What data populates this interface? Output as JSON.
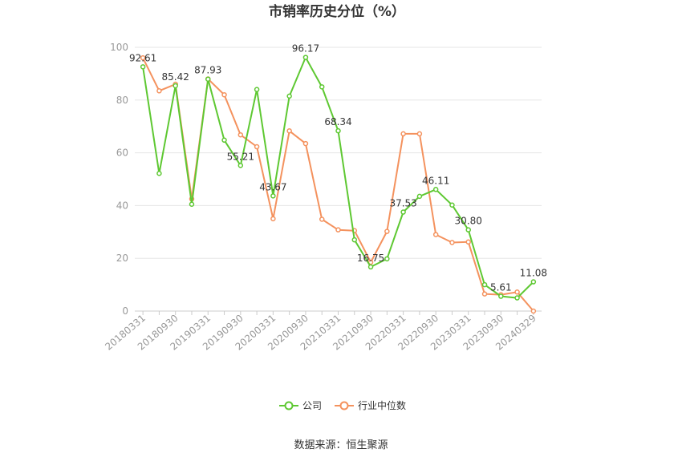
{
  "chart_data": {
    "type": "line",
    "title": "市销率历史分位（%）",
    "xlabel": "",
    "ylabel": "",
    "ylim": [
      0,
      100
    ],
    "yticks": [
      0,
      20,
      40,
      60,
      80,
      100
    ],
    "grid": true,
    "legend_position": "bottom",
    "x": [
      "20180331",
      "20180630",
      "20180930",
      "20181231",
      "20190331",
      "20190630",
      "20190930",
      "20191231",
      "20200331",
      "20200630",
      "20200930",
      "20201231",
      "20210331",
      "20210630",
      "20210930",
      "20211231",
      "20220331",
      "20220630",
      "20220930",
      "20221231",
      "20230331",
      "20230630",
      "20230930",
      "20231231",
      "20240329"
    ],
    "xticks": [
      "20180331",
      "20180930",
      "20190331",
      "20190930",
      "20200331",
      "20200930",
      "20210331",
      "20210930",
      "20220331",
      "20220930",
      "20230331",
      "20230930",
      "20240329"
    ],
    "series": [
      {
        "name": "公司",
        "color": "#5ec832",
        "values": [
          92.61,
          52.2,
          85.42,
          40.5,
          87.93,
          64.8,
          55.21,
          84.0,
          43.67,
          81.5,
          96.17,
          85.0,
          68.34,
          27.0,
          16.75,
          19.8,
          37.53,
          43.5,
          46.11,
          40.2,
          30.8,
          10.0,
          5.61,
          5.0,
          11.08
        ],
        "labels": {
          "0": "92.61",
          "2": "85.42",
          "4": "87.93",
          "6": "55.21",
          "8": "43.67",
          "10": "96.17",
          "12": "68.34",
          "14": "16.75",
          "16": "37.53",
          "18": "46.11",
          "20": "30.80",
          "22": "5.61",
          "24": "11.08"
        }
      },
      {
        "name": "行业中位数",
        "color": "#f4925e",
        "values": [
          96.0,
          83.5,
          86.0,
          42.5,
          88.0,
          82.0,
          66.8,
          62.3,
          35.0,
          68.3,
          63.5,
          34.8,
          30.8,
          30.5,
          18.5,
          30.2,
          67.2,
          67.2,
          29.0,
          26.0,
          26.2,
          6.5,
          6.2,
          7.2,
          0.0
        ]
      }
    ],
    "source": "数据来源：恒生聚源"
  }
}
